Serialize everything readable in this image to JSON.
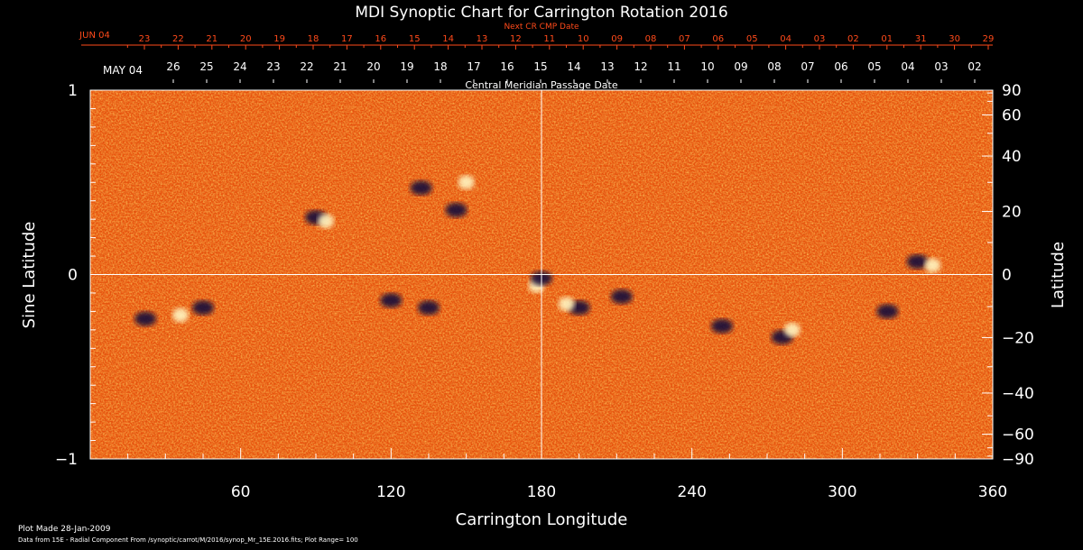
{
  "chart_data": {
    "type": "heatmap",
    "title": "MDI Synoptic Chart for Carrington Rotation 2016",
    "xlabel": "Carrington Longitude",
    "ylabel_left": "Sine Latitude",
    "ylabel_right": "Latitude",
    "xlim": [
      0,
      360
    ],
    "ylim": [
      -1,
      1
    ],
    "x_ticks": [
      60,
      120,
      180,
      240,
      300,
      360
    ],
    "x_minor_step": 15,
    "y_left_ticks": [
      -1,
      0,
      1
    ],
    "y_left_minor_step": 0.1,
    "y_right_ticks": [
      90,
      60,
      40,
      20,
      0,
      -20,
      -40,
      -60,
      -90
    ],
    "y_right_minor_step_deg": 10,
    "cross_lines": {
      "longitude": 180,
      "sine_latitude": 0
    },
    "cmp_axis_label": "Central Meridian Passage Date",
    "cmp_first_label": "MAY 04",
    "cmp_dates": [
      "26",
      "25",
      "24",
      "23",
      "22",
      "21",
      "20",
      "19",
      "18",
      "17",
      "16",
      "15",
      "14",
      "13",
      "12",
      "11",
      "10",
      "09",
      "08",
      "07",
      "06",
      "05",
      "04",
      "03",
      "02"
    ],
    "next_cr_axis_label": "Next CR CMP Date",
    "next_cr_first_label": "JUN 04",
    "next_cr_dates": [
      "23",
      "22",
      "21",
      "20",
      "19",
      "18",
      "17",
      "16",
      "15",
      "14",
      "13",
      "12",
      "11",
      "10",
      "09",
      "08",
      "07",
      "06",
      "05",
      "04",
      "03",
      "02",
      "01",
      "31",
      "30",
      "29"
    ],
    "footer_plot_made": "Plot Made 28-Jan-2009",
    "footer_data": "Data from 15E - Radial Component From /synoptic/carrot/M/2016/synop_Mr_15E.2016.fits; Plot Range=  100",
    "active_regions": [
      {
        "lon": 45,
        "sinlat": -0.18,
        "polarity": "negative"
      },
      {
        "lon": 36,
        "sinlat": -0.22,
        "polarity": "positive"
      },
      {
        "lon": 22,
        "sinlat": -0.24,
        "polarity": "negative"
      },
      {
        "lon": 90,
        "sinlat": 0.31,
        "polarity": "negative"
      },
      {
        "lon": 94,
        "sinlat": 0.29,
        "polarity": "positive"
      },
      {
        "lon": 132,
        "sinlat": 0.47,
        "polarity": "negative"
      },
      {
        "lon": 146,
        "sinlat": 0.35,
        "polarity": "negative"
      },
      {
        "lon": 150,
        "sinlat": 0.5,
        "polarity": "positive"
      },
      {
        "lon": 178,
        "sinlat": -0.06,
        "polarity": "positive"
      },
      {
        "lon": 180,
        "sinlat": -0.02,
        "polarity": "negative"
      },
      {
        "lon": 195,
        "sinlat": -0.18,
        "polarity": "negative"
      },
      {
        "lon": 190,
        "sinlat": -0.16,
        "polarity": "positive"
      },
      {
        "lon": 212,
        "sinlat": -0.12,
        "polarity": "negative"
      },
      {
        "lon": 120,
        "sinlat": -0.14,
        "polarity": "negative"
      },
      {
        "lon": 135,
        "sinlat": -0.18,
        "polarity": "negative"
      },
      {
        "lon": 276,
        "sinlat": -0.34,
        "polarity": "negative"
      },
      {
        "lon": 280,
        "sinlat": -0.3,
        "polarity": "positive"
      },
      {
        "lon": 318,
        "sinlat": -0.2,
        "polarity": "negative"
      },
      {
        "lon": 330,
        "sinlat": 0.07,
        "polarity": "negative"
      },
      {
        "lon": 336,
        "sinlat": 0.05,
        "polarity": "positive"
      },
      {
        "lon": 252,
        "sinlat": -0.28,
        "polarity": "negative"
      }
    ],
    "colors": {
      "background": "#000000",
      "field_base": "#e8520c",
      "positive": "#fff4c0",
      "negative": "#140a3a",
      "axes": "#ffffff",
      "next_cr": "#ff4a1a",
      "title_text": "#ffffff"
    }
  }
}
